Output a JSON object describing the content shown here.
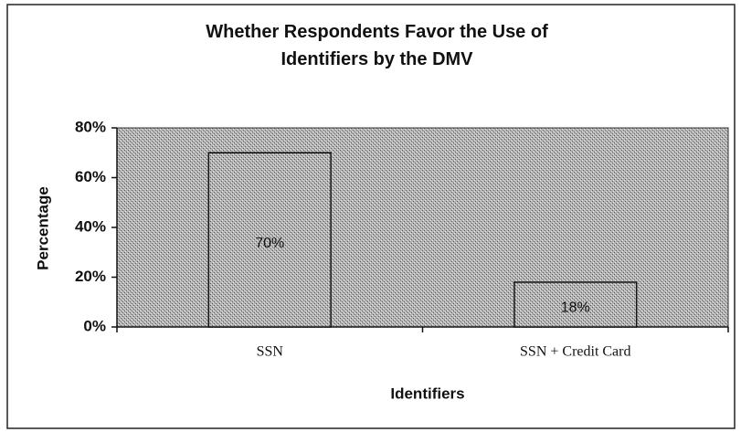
{
  "chart_data": {
    "type": "bar",
    "title": "Whether Respondents Favor the Use of Identifiers by the DMV",
    "xlabel": "Identifiers",
    "ylabel": "Percentage",
    "categories": [
      "SSN",
      "SSN + Credit Card"
    ],
    "values": [
      70,
      18
    ],
    "value_labels": [
      "70%",
      "18%"
    ],
    "color": "#b4b4b4",
    "ylim": [
      0,
      80
    ],
    "yticks": [
      {
        "value": 0,
        "label": "0%"
      },
      {
        "value": 20,
        "label": "20%"
      },
      {
        "value": 40,
        "label": "40%"
      },
      {
        "value": 60,
        "label": "60%"
      },
      {
        "value": 80,
        "label": "80%"
      }
    ],
    "grid": false
  }
}
